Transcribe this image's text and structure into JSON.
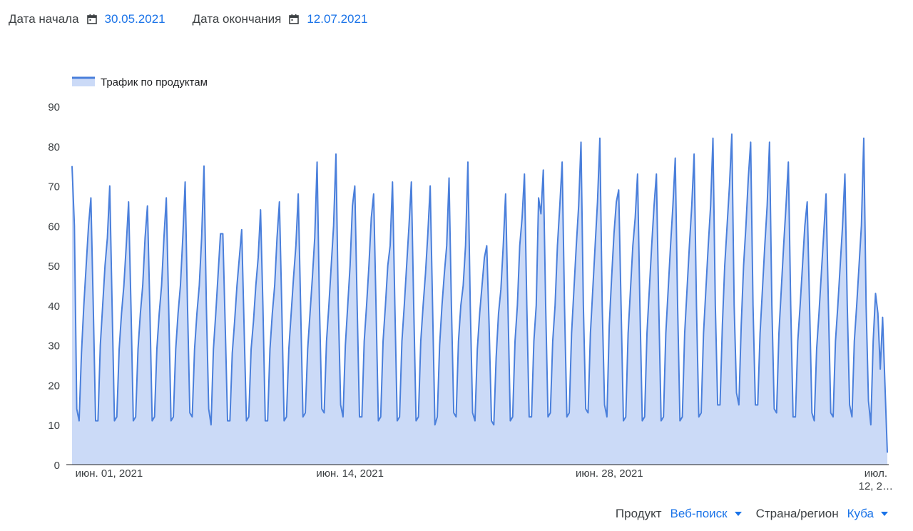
{
  "date_range": {
    "start_label": "Дата начала",
    "start_value": "30.05.2021",
    "end_label": "Дата окончания",
    "end_value": "12.07.2021"
  },
  "filters": {
    "product_label": "Продукт",
    "product_value": "Веб-поиск",
    "region_label": "Страна/регион",
    "region_value": "Куба"
  },
  "colors": {
    "line": "#4a7fdb",
    "fill": "#cbdaf7",
    "accent": "#1a73e8"
  },
  "icons": {
    "date_icon": "calendar-icon",
    "filter_icon": "caret-down-icon"
  },
  "chart_data": {
    "type": "area",
    "legend": [
      "Трафик по продуктам"
    ],
    "legend_position": "top-left",
    "grid": false,
    "ylim": [
      0,
      90
    ],
    "yticks": [
      0,
      10,
      20,
      30,
      40,
      50,
      60,
      70,
      80,
      90
    ],
    "x_tick_labels": [
      {
        "label": "июн. 01, 2021",
        "day": 2
      },
      {
        "label": "июн. 14, 2021",
        "day": 15
      },
      {
        "label": "июн. 28, 2021",
        "day": 29
      },
      {
        "label": "июл. 12, 2…",
        "day": 43
      }
    ],
    "series": [
      {
        "name": "Трафик по продуктам",
        "values": [
          75,
          60,
          14,
          11,
          28,
          40,
          50,
          60,
          67,
          40,
          11,
          11,
          30,
          40,
          50,
          57,
          70,
          40,
          11,
          12,
          29,
          38,
          45,
          55,
          66,
          40,
          11,
          12,
          29,
          38,
          45,
          57,
          65,
          40,
          11,
          12,
          29,
          38,
          45,
          57,
          67,
          40,
          11,
          12,
          29,
          38,
          45,
          57,
          71,
          40,
          13,
          12,
          29,
          38,
          45,
          57,
          75,
          40,
          14,
          10,
          29,
          38,
          48,
          58,
          58,
          35,
          11,
          11,
          28,
          36,
          45,
          52,
          59,
          35,
          11,
          12,
          29,
          36,
          45,
          52,
          64,
          40,
          11,
          11,
          29,
          38,
          45,
          57,
          66,
          40,
          11,
          12,
          29,
          38,
          47,
          55,
          68,
          40,
          12,
          13,
          29,
          38,
          47,
          57,
          76,
          40,
          14,
          13,
          31,
          40,
          50,
          60,
          78,
          40,
          15,
          12,
          30,
          40,
          50,
          65,
          70,
          40,
          12,
          12,
          31,
          40,
          50,
          62,
          68,
          40,
          11,
          12,
          31,
          40,
          50,
          55,
          71,
          40,
          11,
          12,
          31,
          40,
          50,
          60,
          71,
          40,
          11,
          12,
          31,
          40,
          48,
          58,
          70,
          40,
          10,
          12,
          30,
          40,
          48,
          55,
          72,
          40,
          13,
          12,
          31,
          40,
          45,
          55,
          76,
          40,
          13,
          11,
          29,
          38,
          45,
          52,
          55,
          35,
          11,
          10,
          27,
          38,
          44,
          55,
          68,
          40,
          11,
          12,
          31,
          40,
          55,
          62,
          73,
          40,
          12,
          12,
          31,
          40,
          67,
          63,
          74,
          40,
          12,
          13,
          31,
          40,
          55,
          65,
          76,
          40,
          12,
          13,
          33,
          44,
          55,
          65,
          81,
          40,
          14,
          13,
          33,
          44,
          55,
          66,
          82,
          40,
          15,
          12,
          35,
          47,
          58,
          66,
          69,
          40,
          11,
          12,
          33,
          44,
          55,
          62,
          73,
          40,
          11,
          12,
          33,
          44,
          55,
          65,
          73,
          40,
          11,
          12,
          33,
          44,
          55,
          65,
          77,
          40,
          11,
          12,
          33,
          44,
          55,
          65,
          78,
          40,
          12,
          13,
          33,
          44,
          55,
          65,
          82,
          40,
          15,
          15,
          35,
          50,
          60,
          70,
          83,
          40,
          18,
          15,
          35,
          50,
          60,
          72,
          81,
          40,
          15,
          15,
          33,
          44,
          55,
          65,
          81,
          40,
          14,
          13,
          33,
          44,
          55,
          65,
          76,
          40,
          12,
          12,
          31,
          40,
          50,
          60,
          66,
          40,
          13,
          11,
          29,
          38,
          48,
          58,
          68,
          40,
          13,
          12,
          31,
          40,
          50,
          60,
          73,
          40,
          15,
          12,
          31,
          40,
          50,
          60,
          82,
          40,
          16,
          10,
          31,
          43,
          38,
          24,
          37,
          20,
          3
        ]
      }
    ]
  }
}
